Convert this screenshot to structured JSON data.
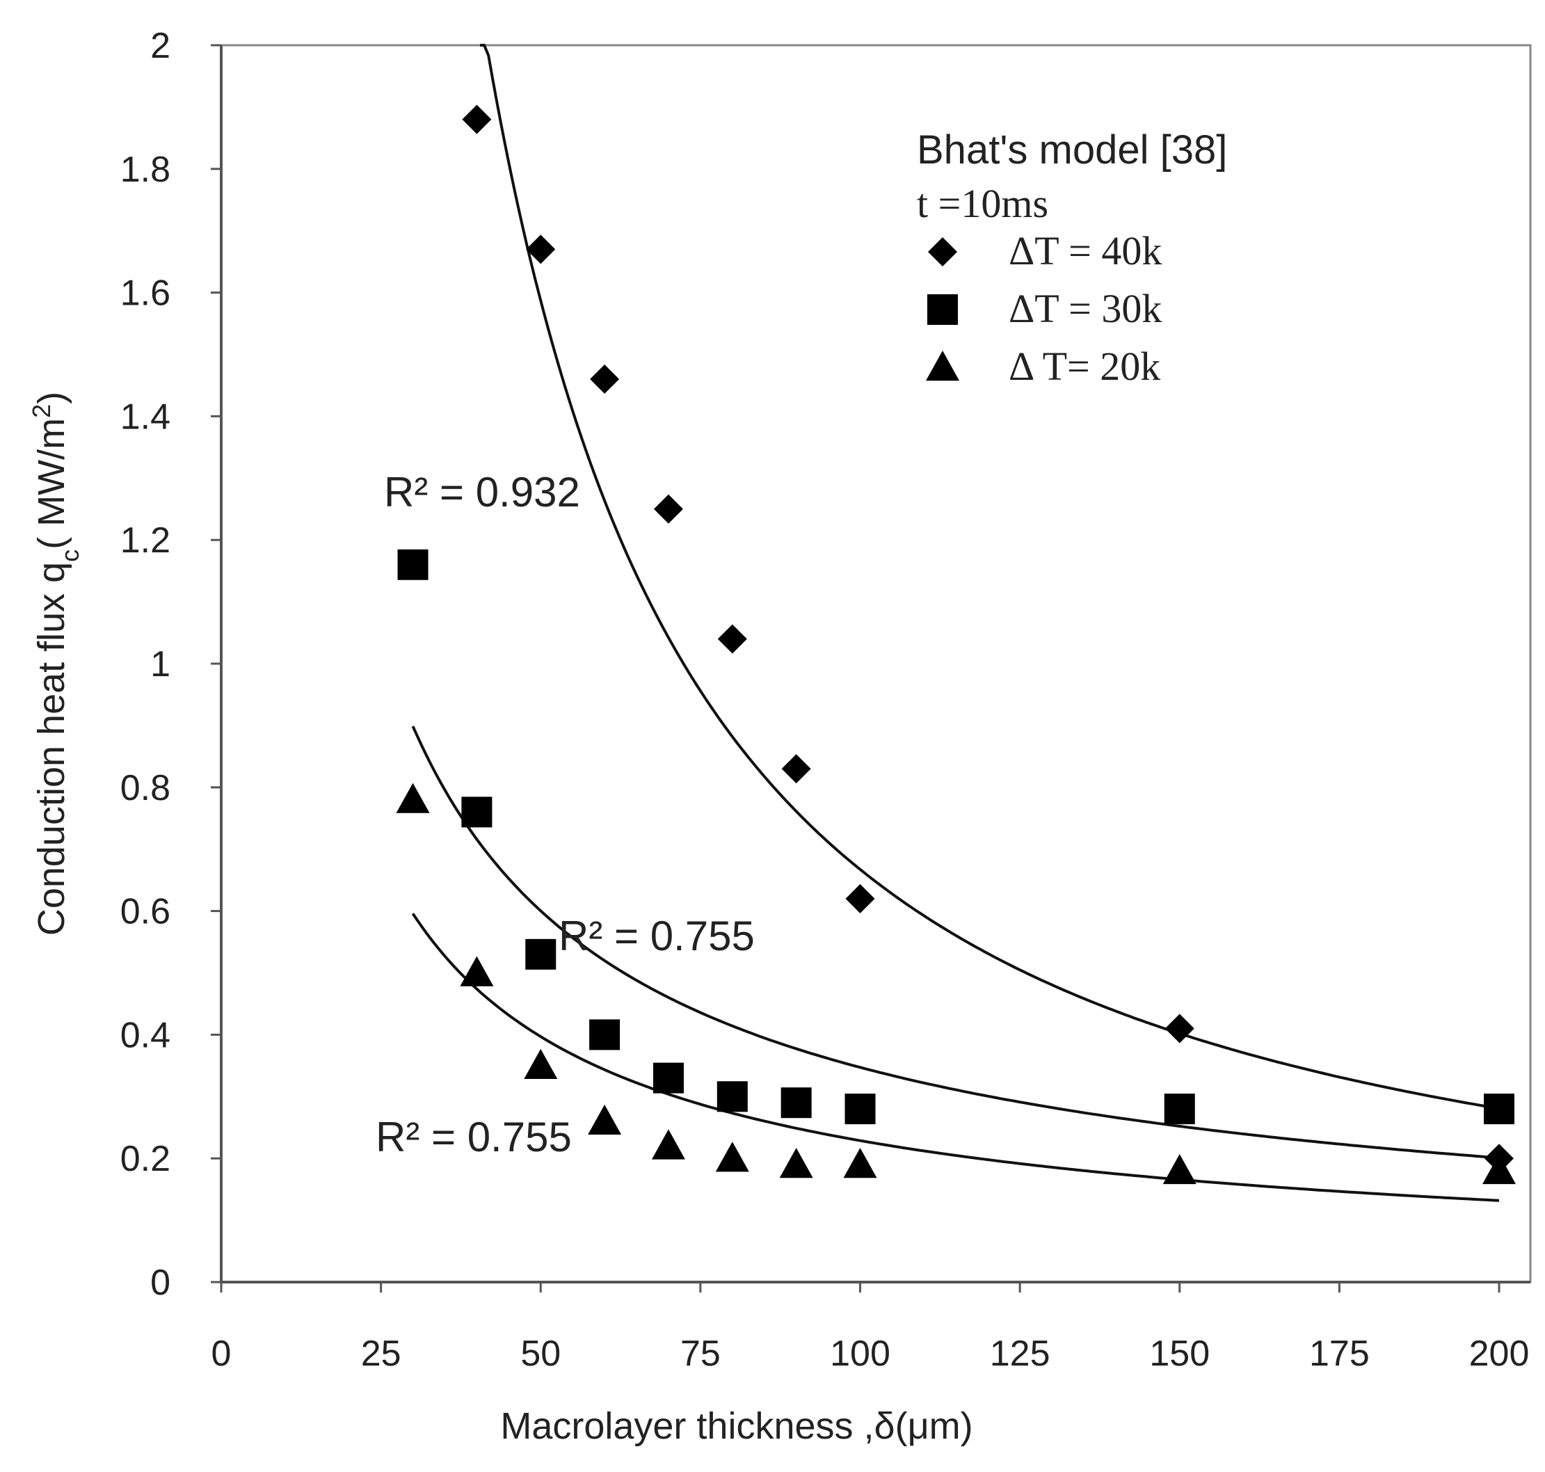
{
  "chart_data": {
    "type": "scatter",
    "xlabel": "Macrolayer thickness ,δ(μm)",
    "ylabel": "Conduction heat flux qc( MW/m2)",
    "ylabel_parts": {
      "pre": "Conduction heat flux q",
      "sub": "c",
      "mid": "( MW/m",
      "sup": "2",
      "post": ")"
    },
    "xlim": [
      0,
      200
    ],
    "ylim": [
      0,
      2
    ],
    "xticks": [
      "0",
      "25",
      "50",
      "75",
      "100",
      "125",
      "150",
      "175",
      "200"
    ],
    "yticks": [
      "0",
      "0.2",
      "0.4",
      "0.6",
      "0.8",
      "1",
      "1.2",
      "1.4",
      "1.6",
      "1.8",
      "2"
    ],
    "legend": {
      "title": "Bhat's model [38]",
      "subtitle": "t =10ms",
      "placement": "top-right"
    },
    "series": [
      {
        "name": "ΔT = 40k",
        "marker": "diamond",
        "x": [
          40,
          50,
          60,
          70,
          80,
          90,
          100,
          150,
          200
        ],
        "y": [
          1.88,
          1.67,
          1.46,
          1.25,
          1.04,
          0.83,
          0.62,
          0.41,
          0.2
        ],
        "trend": {
          "type": "power",
          "a": 211.0,
          "b": -1.25,
          "x_from": 40.5,
          "x_to": 200
        }
      },
      {
        "name": "ΔT = 30k",
        "marker": "square",
        "x": [
          30,
          40,
          50,
          60,
          70,
          80,
          90,
          100,
          150,
          200
        ],
        "y": [
          1.16,
          0.76,
          0.53,
          0.4,
          0.33,
          0.3,
          0.29,
          0.28,
          0.28,
          0.28
        ],
        "trend": {
          "type": "power",
          "a": 13.2,
          "b": -0.79,
          "x_from": 30,
          "x_to": 200
        }
      },
      {
        "name": "Δ T= 20k",
        "marker": "triangle",
        "x": [
          30,
          40,
          50,
          60,
          70,
          80,
          90,
          100,
          150,
          200
        ],
        "y": [
          0.78,
          0.5,
          0.35,
          0.26,
          0.22,
          0.2,
          0.19,
          0.19,
          0.18,
          0.18
        ],
        "trend": {
          "type": "power",
          "a": 8.9,
          "b": -0.795,
          "x_from": 30,
          "x_to": 200
        }
      }
    ],
    "annotations": [
      {
        "text": "R² = 0.932",
        "near_series": "ΔT = 40k"
      },
      {
        "text": "R² = 0.755",
        "near_series": "ΔT = 30k"
      },
      {
        "text": "R² = 0.755",
        "near_series": "Δ T= 20k"
      }
    ]
  }
}
